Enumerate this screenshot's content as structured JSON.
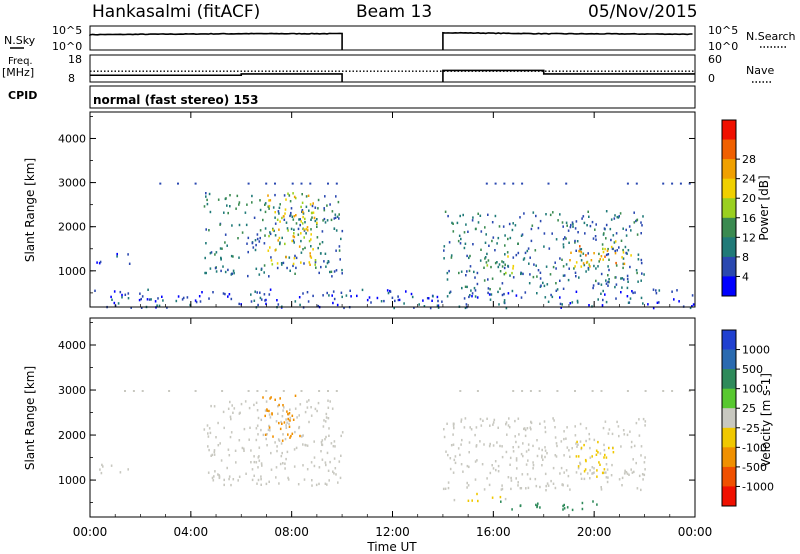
{
  "header": {
    "station": "Hankasalmi (fitACF)",
    "beam": "Beam 13",
    "date": "05/Nov/2015"
  },
  "left_labels": {
    "nsky": "N.Sky",
    "freq": "Freq.",
    "mhz": "[MHz]",
    "cpid": "CPID"
  },
  "right_labels": {
    "nsearch": "N.Search",
    "nave": "Nave"
  },
  "noise_panel": {
    "ticks_left": [
      "10^5",
      "10^0"
    ],
    "ticks_right": [
      "10^5",
      "10^0"
    ]
  },
  "freq_panel": {
    "ticks_left": [
      "18",
      "8"
    ],
    "ticks_right": [
      "60",
      "0"
    ]
  },
  "cpid_text": "normal (fast stereo) 153",
  "axes": {
    "ylabel": "Slant Range [km]",
    "xlabel": "Time UT",
    "y_ticks": [
      "1000",
      "2000",
      "3000",
      "4000"
    ],
    "x_ticks": [
      "00:00",
      "04:00",
      "08:00",
      "12:00",
      "16:00",
      "20:00",
      "00:00"
    ]
  },
  "colorbars": {
    "power": {
      "label": "Power [dB]",
      "ticks": [
        "4",
        "8",
        "12",
        "16",
        "20",
        "24",
        "28"
      ],
      "colors": [
        "#0000ff",
        "#2a48b0",
        "#207a78",
        "#3a8a50",
        "#9ad020",
        "#f0d000",
        "#f0a000",
        "#f06000",
        "#f01000"
      ]
    },
    "velocity": {
      "label": "Velocity [m s-1]",
      "ticks": [
        "1000",
        "500",
        "100",
        "25",
        "-25",
        "-100",
        "-500",
        "-1000"
      ],
      "colors": [
        "#2040d0",
        "#2a6ab0",
        "#2e8a5a",
        "#58c830",
        "#c8c8c0",
        "#f0c800",
        "#f09000",
        "#f05000",
        "#f01000"
      ]
    }
  },
  "chart_data": [
    {
      "type": "line",
      "name": "noise",
      "x": [
        "00:00",
        "06:00",
        "10:00",
        "14:00",
        "18:00",
        "24:00"
      ],
      "series": [
        {
          "values": [
            3.2,
            3.4,
            3.4,
            3.6,
            3.4,
            3.3
          ]
        },
        {
          "values": [
            3.0,
            3.2,
            3.2,
            3.3,
            3.1,
            3.0
          ]
        }
      ],
      "gap": [
        "10:00",
        "14:00"
      ]
    },
    {
      "type": "line",
      "name": "frequency",
      "x": [
        "00:00",
        "06:00",
        "10:00",
        "14:00",
        "18:00",
        "24:00"
      ],
      "series": [
        {
          "values": [
            10.5,
            10.5,
            11.0,
            12.3,
            11.0,
            11.0
          ]
        },
        {
          "values": [
            12.0,
            12.0,
            12.0,
            12.0,
            12.0,
            12.0
          ]
        }
      ],
      "gap": [
        "10:00",
        "14:00"
      ]
    },
    {
      "type": "heatmap",
      "name": "power",
      "x_range_hours": [
        0,
        24
      ],
      "y_range_km": [
        180,
        4600
      ],
      "regions": [
        {
          "t": [
            0.2,
            1.6
          ],
          "r": [
            1180,
            1420
          ],
          "dB": 5
        },
        {
          "t": [
            4.5,
            10.0
          ],
          "r": [
            900,
            2800
          ],
          "dB": 10
        },
        {
          "t": [
            7.0,
            9.0
          ],
          "r": [
            1100,
            2800
          ],
          "dB": 22
        },
        {
          "t": [
            14.0,
            22.0
          ],
          "r": [
            600,
            2400
          ],
          "dB": 9
        },
        {
          "t": [
            15.5,
            16.8
          ],
          "r": [
            900,
            1400
          ],
          "dB": 16
        },
        {
          "t": [
            19.0,
            21.5
          ],
          "r": [
            1100,
            1700
          ],
          "dB": 24
        },
        {
          "t": [
            0.0,
            24.0
          ],
          "r": [
            180,
            600
          ],
          "dB": 6
        }
      ]
    },
    {
      "type": "heatmap",
      "name": "velocity",
      "x_range_hours": [
        0,
        24
      ],
      "y_range_km": [
        180,
        4600
      ],
      "regions": [
        {
          "t": [
            0.2,
            1.6
          ],
          "r": [
            1180,
            1420
          ],
          "v": 0
        },
        {
          "t": [
            4.5,
            10.0
          ],
          "r": [
            900,
            2800
          ],
          "v": 0
        },
        {
          "t": [
            6.8,
            8.4
          ],
          "r": [
            1900,
            2900
          ],
          "v": -150
        },
        {
          "t": [
            14.0,
            22.0
          ],
          "r": [
            800,
            2400
          ],
          "v": 0
        },
        {
          "t": [
            14.2,
            16.5
          ],
          "r": [
            560,
            720
          ],
          "v": -40
        },
        {
          "t": [
            16.2,
            20.5
          ],
          "r": [
            360,
            560
          ],
          "v": 120
        },
        {
          "t": [
            19.2,
            20.8
          ],
          "r": [
            1100,
            1900
          ],
          "v": -60
        }
      ]
    }
  ]
}
